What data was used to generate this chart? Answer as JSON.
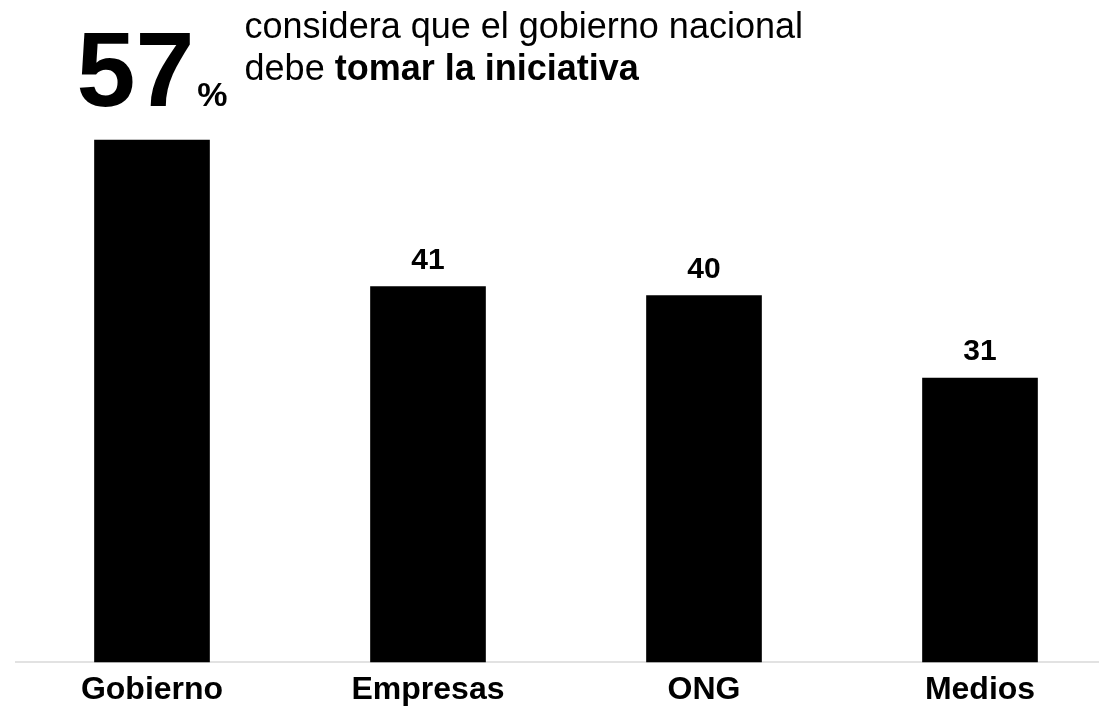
{
  "chart_data": {
    "type": "bar",
    "categories": [
      "Gobierno",
      "Empresas",
      "ONG",
      "Medios"
    ],
    "values": [
      57,
      41,
      40,
      31
    ],
    "color": "#000000",
    "value_labels": [
      "57%",
      "41",
      "40",
      "31"
    ],
    "annotations": [
      "considera que el gobierno nacional",
      "debe",
      "tomar la iniciativa"
    ]
  }
}
